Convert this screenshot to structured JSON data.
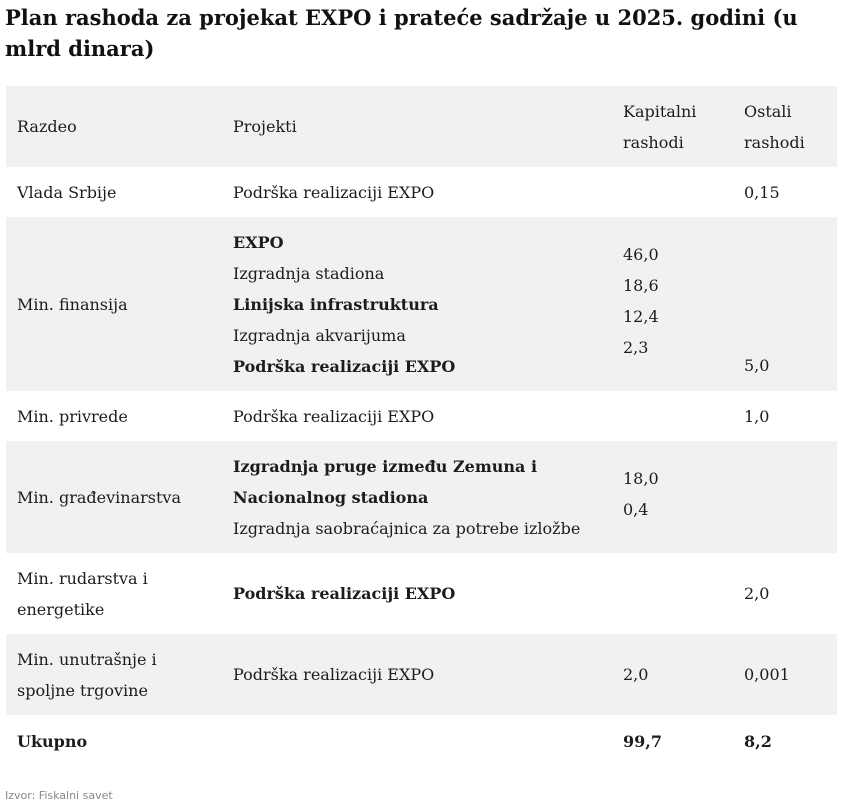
{
  "title": "Plan rashoda za projekat EXPO i prateće sadržaje u 2025. godini (u mlrd dinara)",
  "header": {
    "razdeo": "Razdeo",
    "projekti": "Projekti",
    "kapitalni_l1": "Kapitalni",
    "kapitalni_l2": "rashodi",
    "ostali_l1": "Ostali",
    "ostali_l2": "rashodi"
  },
  "rows": [
    {
      "razdeo": "Vlada Srbije",
      "projekti": [
        "Podrška realizaciji EXPO"
      ],
      "kapitalni": [],
      "ostali": "0,15"
    },
    {
      "razdeo": "Min. finansija",
      "projekti": [
        "EXPO",
        "Izgradnja stadiona",
        "Linijska infrastruktura",
        "Izgradnja akvarijuma",
        "Podrška realizaciji EXPO"
      ],
      "kapitalni": [
        "46,0",
        "18,6",
        "12,4",
        "2,3"
      ],
      "ostali": "5,0"
    },
    {
      "razdeo": "Min. privrede",
      "projekti": [
        "Podrška realizaciji EXPO"
      ],
      "kapitalni": [],
      "ostali": "1,0"
    },
    {
      "razdeo": "Min. građevinarstva",
      "projekti": [
        "Izgradnja pruge između Zemuna i",
        "Nacionalnog stadiona",
        "Izgradnja saobraćajnica za potrebe izložbe"
      ],
      "kapitalni": [
        "18,0",
        "0,4"
      ],
      "ostali": ""
    },
    {
      "razdeo_l1": "Min. rudarstva i",
      "razdeo_l2": "energetike",
      "projekti": [
        "Podrška realizaciji EXPO"
      ],
      "kapitalni": [],
      "ostali": "2,0"
    },
    {
      "razdeo_l1": "Min. unutrašnje i",
      "razdeo_l2": "spoljne trgovine",
      "projekti": [
        "Podrška realizaciji EXPO"
      ],
      "kapitalni": [
        "2,0"
      ],
      "ostali": "0,001"
    }
  ],
  "total": {
    "label": "Ukupno",
    "kapitalni": "99,7",
    "ostali": "8,2"
  },
  "source": "Izvor: Fiskalni savet"
}
